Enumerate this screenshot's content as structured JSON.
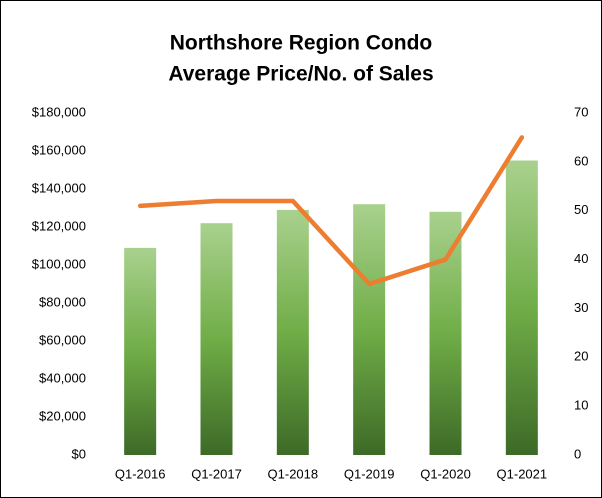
{
  "chart_data": {
    "type": "combo",
    "title": [
      "Northshore Region Condo",
      "Average Price/No. of Sales"
    ],
    "categories": [
      "Q1-2016",
      "Q1-2017",
      "Q1-2018",
      "Q1-2019",
      "Q1-2020",
      "Q1-2021"
    ],
    "series": [
      {
        "type": "bar",
        "gradient": [
          "#a9d18e",
          "#70ad47",
          "#3d6a27"
        ],
        "values": [
          109000,
          122000,
          129000,
          132000,
          128000,
          155000
        ]
      },
      {
        "type": "line",
        "axis": "y2",
        "color": "#ed7d31",
        "values": [
          51,
          52,
          52,
          35,
          40,
          65
        ]
      }
    ],
    "ylim": [
      0,
      180000
    ],
    "yticks": [
      {
        "value": 0,
        "label": "$0"
      },
      {
        "value": 20000,
        "label": "$20,000"
      },
      {
        "value": 40000,
        "label": "$40,000"
      },
      {
        "value": 60000,
        "label": "$60,000"
      },
      {
        "value": 80000,
        "label": "$80,000"
      },
      {
        "value": 100000,
        "label": "$100,000"
      },
      {
        "value": 120000,
        "label": "$120,000"
      },
      {
        "value": 140000,
        "label": "$140,000"
      },
      {
        "value": 160000,
        "label": "$160,000"
      },
      {
        "value": 180000,
        "label": "$180,000"
      }
    ],
    "y2lim": [
      0,
      70
    ],
    "y2ticks": [
      0,
      10,
      20,
      30,
      40,
      50,
      60,
      70
    ],
    "grid": false
  }
}
